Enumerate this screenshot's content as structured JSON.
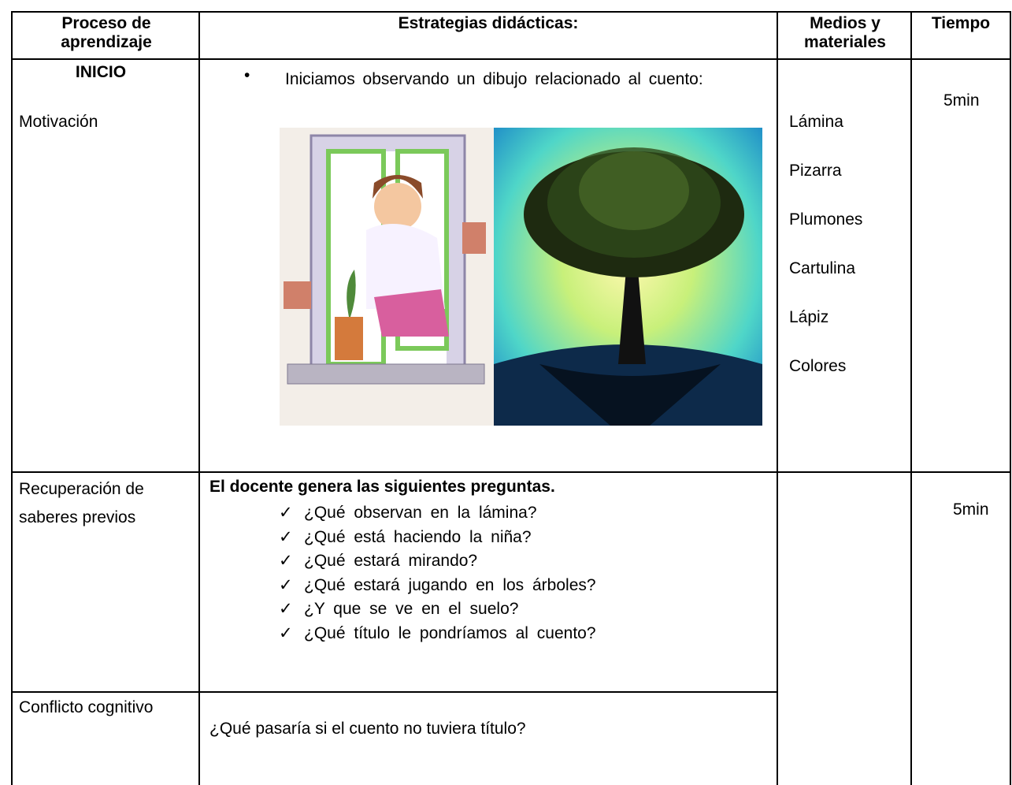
{
  "header": {
    "columns": [
      "Proceso de aprendizaje",
      "Estrategias didácticas:",
      "Medios y materiales",
      "Tiempo"
    ]
  },
  "rows": [
    {
      "stage": "INICIO",
      "process": "Motivación",
      "strategy": "Iniciamos observando un dibujo relacionado al cuento:",
      "materials": [
        "Lámina",
        "Pizarra",
        "Plumones",
        "Cartulina",
        "Lápiz",
        "Colores"
      ],
      "time": "5min"
    },
    {
      "process": "Recuperación de saberes previos",
      "strategy_title": "El docente genera las siguientes preguntas.",
      "questions": [
        "¿Qué observan en la lámina?",
        "¿Qué está haciendo la niña?",
        "¿Qué estará mirando?",
        "¿Qué estará jugando en los árboles?",
        "¿Y que se ve en el suelo?",
        "¿Qué título le pondríamos al cuento?"
      ],
      "time": "5min"
    },
    {
      "process": "Conflicto cognitivo",
      "strategy": "¿Qué pasaría si el cuento no tuviera título?"
    }
  ]
}
